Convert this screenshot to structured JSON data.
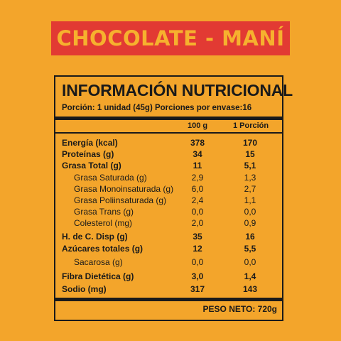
{
  "banner": {
    "title": "CHOCOLATE - MANÍ"
  },
  "panel": {
    "title": "INFORMACIÓN NUTRICIONAL",
    "serving": "Porción: 1 unidad (45g) Porciones por envase:16",
    "col_100g": "100 g",
    "col_portion": "1 Porción",
    "rows": [
      {
        "label": "Energía (kcal)",
        "v100": "378",
        "vpor": "170",
        "bold": true
      },
      {
        "label": "Proteínas (g)",
        "v100": "34",
        "vpor": "15",
        "bold": true
      },
      {
        "label": "Grasa Total (g)",
        "v100": "11",
        "vpor": "5,1",
        "bold": true
      },
      {
        "label": "Grasa Saturada (g)",
        "v100": "2,9",
        "vpor": "1,3",
        "bold": false
      },
      {
        "label": "Grasa Monoinsaturada (g)",
        "v100": "6,0",
        "vpor": "2,7",
        "bold": false
      },
      {
        "label": "Grasa Poliinsaturada (g)",
        "v100": "2,4",
        "vpor": "1,1",
        "bold": false
      },
      {
        "label": "Grasa Trans (g)",
        "v100": "0,0",
        "vpor": "0,0",
        "bold": false
      },
      {
        "label": "Colesterol (mg)",
        "v100": "2,0",
        "vpor": "0,9",
        "bold": false
      },
      {
        "label": "H. de C. Disp (g)",
        "v100": "35",
        "vpor": "16",
        "bold": true
      },
      {
        "label": "Azúcares totales (g)",
        "v100": "12",
        "vpor": "5,5",
        "bold": true
      },
      {
        "label": "Sacarosa (g)",
        "v100": "0,0",
        "vpor": "0,0",
        "bold": false
      },
      {
        "label": "Fibra Dietética (g)",
        "v100": "3,0",
        "vpor": "1,4",
        "bold": true
      },
      {
        "label": "Sodio (mg)",
        "v100": "317",
        "vpor": "143",
        "bold": true
      }
    ],
    "net_weight": "PESO NETO: 720g"
  },
  "colors": {
    "background": "#f3a52b",
    "banner": "#e23a33",
    "banner_text": "#f6b12e",
    "ink": "#1a1a1a"
  }
}
